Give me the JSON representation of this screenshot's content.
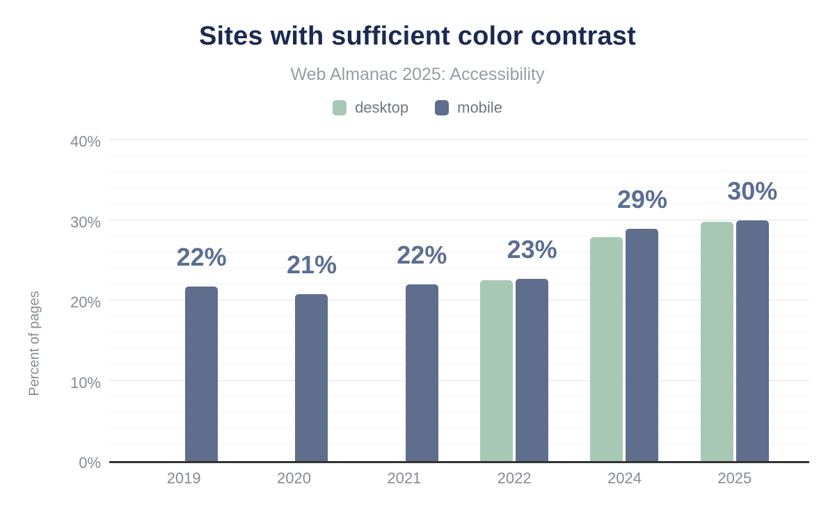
{
  "chart_data": {
    "type": "bar",
    "title": "Sites with sufficient color contrast",
    "subtitle": "Web Almanac 2025: Accessibility",
    "ylabel": "Percent of pages",
    "xlabel": "",
    "categories": [
      "2019",
      "2020",
      "2021",
      "2022",
      "2024",
      "2025"
    ],
    "series": [
      {
        "name": "desktop",
        "color": "#a8c8b6",
        "values": [
          null,
          null,
          null,
          22.5,
          27.9,
          29.8
        ]
      },
      {
        "name": "mobile",
        "color": "#5f6e8c",
        "values": [
          21.7,
          20.8,
          22.0,
          22.7,
          28.9,
          30.0
        ]
      }
    ],
    "data_labels": [
      "22%",
      "21%",
      "22%",
      "23%",
      "29%",
      "30%"
    ],
    "ylim": [
      0,
      40
    ],
    "y_major_ticks": [
      {
        "value": 0,
        "label": "0%"
      },
      {
        "value": 10,
        "label": "10%"
      },
      {
        "value": 20,
        "label": "20%"
      },
      {
        "value": 30,
        "label": "30%"
      },
      {
        "value": 40,
        "label": "40%"
      }
    ],
    "y_minor_step": 2,
    "grid": true,
    "legend_position": "top"
  },
  "colors": {
    "title": "#1c2a52",
    "subtitle": "#989da3",
    "axis_text": "#868b93",
    "legend_text": "#71767c",
    "data_label": "#5c6e92",
    "grid_major": "#e2e2e2",
    "grid_minor": "#f3f3f3",
    "axis_line": "#333333",
    "background": "#ffffff"
  }
}
